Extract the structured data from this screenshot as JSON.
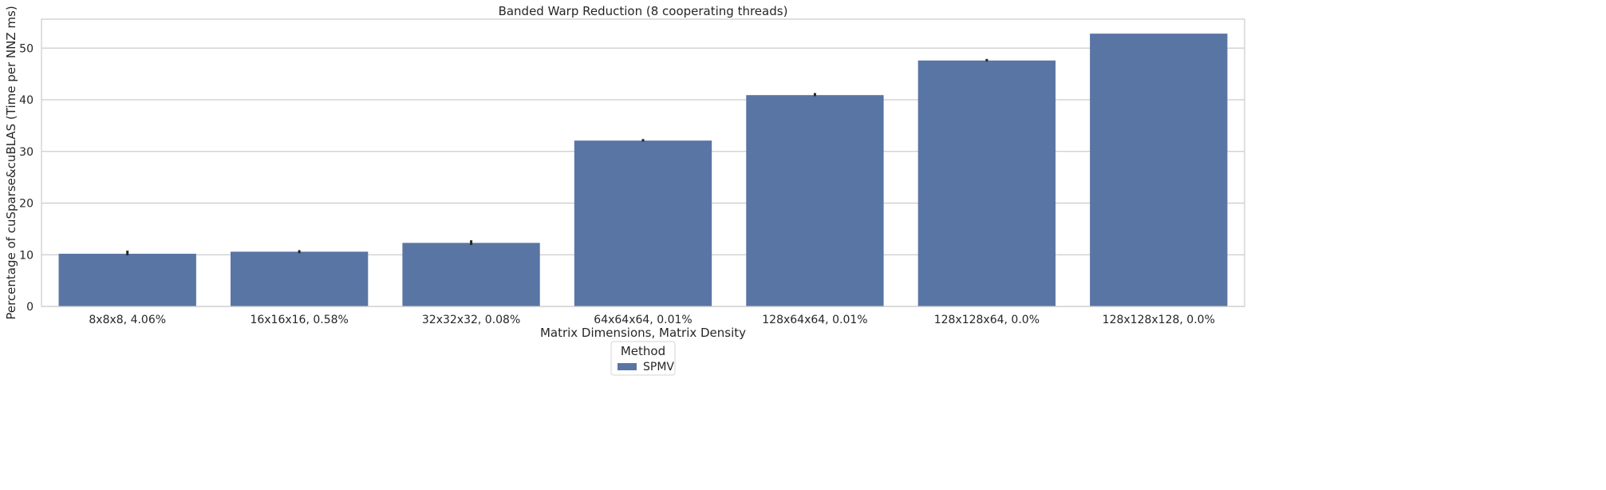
{
  "chart_data": {
    "type": "bar",
    "title": "Banded Warp Reduction (8 cooperating threads)",
    "xlabel": "Matrix Dimensions, Matrix Density",
    "ylabel": "Percentage of cuSparse&cuBLAS (Time per NNZ ms)",
    "categories": [
      "8x8x8, 4.06%",
      "16x16x16, 0.58%",
      "32x32x32, 0.08%",
      "64x64x64, 0.01%",
      "128x64x64, 0.01%",
      "128x128x64, 0.0%",
      "128x128x128, 0.0%"
    ],
    "series": [
      {
        "name": "SPMV",
        "values": [
          10.2,
          10.6,
          12.3,
          32.1,
          40.9,
          47.6,
          52.8
        ],
        "error_low": [
          9.9,
          10.3,
          11.9,
          31.9,
          40.7,
          47.4,
          52.8
        ],
        "error_high": [
          10.8,
          10.9,
          12.8,
          32.4,
          41.3,
          47.9,
          52.8
        ],
        "color": "#5975a4"
      }
    ],
    "yticks": [
      0,
      10,
      20,
      30,
      40,
      50
    ],
    "ylim": [
      0,
      55.6
    ],
    "grid": "horizontal",
    "legend": {
      "title": "Method",
      "position": "bottom-center"
    }
  }
}
